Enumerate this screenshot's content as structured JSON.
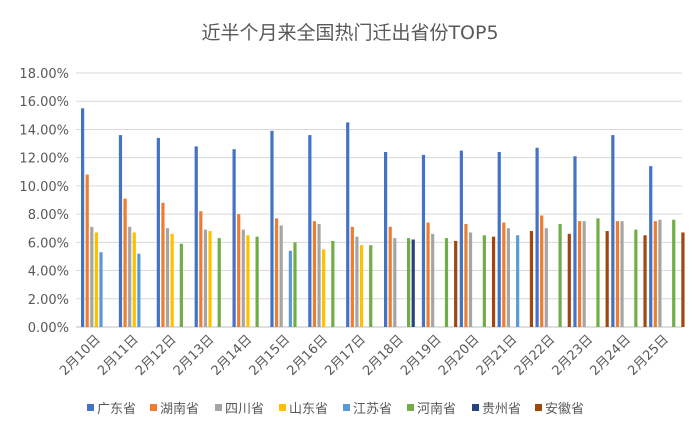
{
  "chart_data": {
    "type": "bar",
    "title": "近半个月来全国热门迁出省份TOP5",
    "xlabel": "",
    "ylabel": "",
    "ylim": [
      0,
      0.18
    ],
    "ytick_labels": [
      "0.00%",
      "2.00%",
      "4.00%",
      "6.00%",
      "8.00%",
      "10.00%",
      "12.00%",
      "14.00%",
      "16.00%",
      "18.00%"
    ],
    "ytick_values": [
      0,
      0.02,
      0.04,
      0.06,
      0.08,
      0.1,
      0.12,
      0.14,
      0.16,
      0.18
    ],
    "grid": true,
    "legend_position": "bottom",
    "categories": [
      "2月10日",
      "2月11日",
      "2月12日",
      "2月13日",
      "2月14日",
      "2月15日",
      "2月16日",
      "2月17日",
      "2月18日",
      "2月19日",
      "2月20日",
      "2月21日",
      "2月22日",
      "2月23日",
      "2月24日",
      "2月25日"
    ],
    "series": [
      {
        "name": "广东省",
        "color": "#4472C4",
        "values": [
          0.155,
          0.136,
          0.134,
          0.128,
          0.126,
          0.139,
          0.136,
          0.145,
          0.124,
          0.122,
          0.125,
          0.124,
          0.127,
          0.121,
          0.136,
          0.114
        ]
      },
      {
        "name": "湖南省",
        "color": "#ED7D31",
        "values": [
          0.108,
          0.091,
          0.088,
          0.082,
          0.08,
          0.077,
          0.075,
          0.071,
          0.071,
          0.074,
          0.073,
          0.074,
          0.079,
          0.075,
          0.075,
          0.075
        ]
      },
      {
        "name": "四川省",
        "color": "#A5A5A5",
        "values": [
          0.071,
          0.071,
          0.07,
          0.069,
          0.069,
          0.072,
          0.073,
          0.064,
          0.063,
          0.066,
          0.067,
          0.07,
          0.07,
          0.075,
          0.075,
          0.076
        ]
      },
      {
        "name": "山东省",
        "color": "#FFC000",
        "values": [
          0.067,
          0.067,
          0.066,
          0.068,
          0.065,
          null,
          0.055,
          0.058,
          null,
          null,
          null,
          null,
          null,
          null,
          null,
          null
        ]
      },
      {
        "name": "江苏省",
        "color": "#5B9BD5",
        "values": [
          0.053,
          0.052,
          null,
          null,
          null,
          0.054,
          null,
          null,
          null,
          null,
          null,
          0.065,
          null,
          null,
          null,
          null
        ]
      },
      {
        "name": "河南省",
        "color": "#70AD47",
        "values": [
          null,
          null,
          0.059,
          0.063,
          0.064,
          0.06,
          0.061,
          0.058,
          0.063,
          0.063,
          0.065,
          null,
          0.073,
          0.077,
          0.069,
          0.076
        ]
      },
      {
        "name": "贵州省",
        "color": "#264478",
        "values": [
          null,
          null,
          null,
          null,
          null,
          null,
          null,
          null,
          0.062,
          null,
          null,
          null,
          null,
          null,
          null,
          null
        ]
      },
      {
        "name": "安徽省",
        "color": "#9E480E",
        "values": [
          null,
          null,
          null,
          null,
          null,
          null,
          null,
          null,
          null,
          0.061,
          0.064,
          0.068,
          0.066,
          0.068,
          0.065,
          0.067
        ]
      }
    ]
  }
}
